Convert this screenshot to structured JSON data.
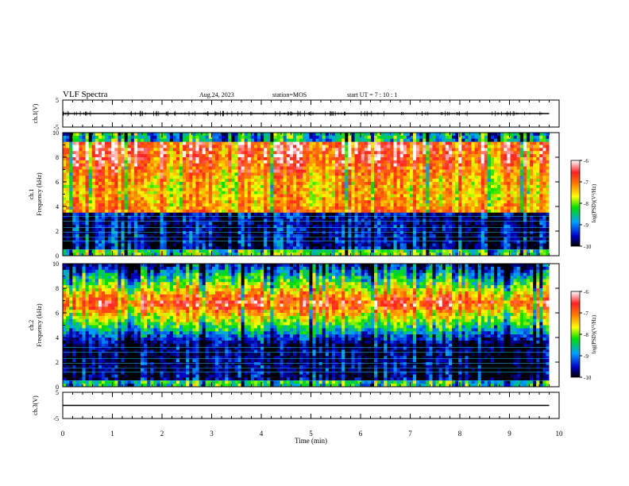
{
  "header": {
    "title": "VLF Spectra",
    "date": "Aug.24, 2023",
    "station": "station=MOS",
    "start_ut": "start UT =  7 : 10 : 1"
  },
  "chart_data": [
    {
      "type": "line",
      "name": "ch1-waveform",
      "ylabel": "ch.1(V)",
      "ylim": [
        -5,
        5
      ],
      "yticks": [
        "5",
        "-5"
      ],
      "xlim": [
        0,
        10
      ],
      "x": [
        0,
        9.8
      ],
      "y": [
        0,
        0
      ]
    },
    {
      "type": "heatmap",
      "name": "ch1-spectrogram",
      "ylabel": "ch.1\nFrequency (kHz)",
      "ylim": [
        0,
        10
      ],
      "yticks": [
        "0",
        "2",
        "4",
        "6",
        "8",
        "10"
      ],
      "xlim": [
        0,
        9.8
      ],
      "colorbar": {
        "label": "log(PSD)(V²/Hz)",
        "ticks": [
          "-6",
          "-7",
          "-8",
          "-9",
          "-10"
        ],
        "range": [
          -10,
          -6
        ]
      }
    },
    {
      "type": "heatmap",
      "name": "ch2-spectrogram",
      "ylabel": "ch.2\nFrequency (kHz)",
      "ylim": [
        0,
        10
      ],
      "yticks": [
        "0",
        "2",
        "4",
        "6",
        "8",
        "10"
      ],
      "xlim": [
        0,
        9.8
      ],
      "colorbar": {
        "label": "log(PSD)(V²/Hz)",
        "ticks": [
          "-6",
          "-7",
          "-8",
          "-9",
          "-10"
        ],
        "range": [
          -10,
          -6
        ]
      }
    },
    {
      "type": "line",
      "name": "ch3-waveform",
      "ylabel": "ch.3(V)",
      "ylim": [
        -5,
        5
      ],
      "yticks": [
        "5",
        "-5"
      ],
      "xlim": [
        0,
        10
      ],
      "x": [
        0,
        9.8
      ],
      "y": [
        0,
        0
      ]
    }
  ],
  "xaxis": {
    "label": "Time (min)",
    "ticks": [
      "0",
      "1",
      "2",
      "3",
      "4",
      "5",
      "6",
      "7",
      "8",
      "9",
      "10"
    ],
    "range": [
      0,
      10
    ]
  },
  "colors": {
    "ink": "#000000",
    "scale": [
      "#000000",
      "#0000c8",
      "#00a0ff",
      "#00e000",
      "#ffff00",
      "#ff8000",
      "#ff2020",
      "#ffffff"
    ]
  }
}
